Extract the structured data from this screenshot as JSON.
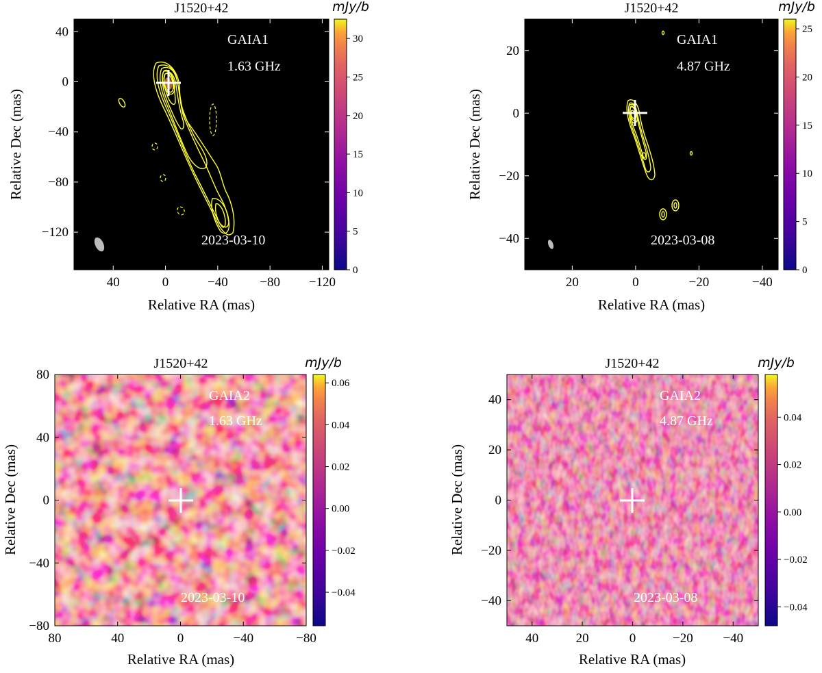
{
  "chart_data": [
    {
      "type": "heatmap",
      "title": "J1520+42",
      "xlabel": "Relative RA (mas)",
      "ylabel": "Relative Dec (mas)",
      "colorbar_label": "mJy/b",
      "xlim": [
        70,
        -125
      ],
      "ylim": [
        -150,
        50
      ],
      "xticks": [
        40,
        0,
        -40,
        -80,
        -120
      ],
      "yticks": [
        40,
        0,
        -40,
        -80,
        -120
      ],
      "vmin": 0,
      "vmax": 32.5,
      "colorbar_ticks": [
        0,
        5,
        10,
        15,
        20,
        25,
        30
      ],
      "source": "GAIA1",
      "frequency": "1.63 GHz",
      "date": "2023-03-10",
      "background": "black",
      "contours": true,
      "marker": {
        "ra": 0,
        "dec": 0
      }
    },
    {
      "type": "heatmap",
      "title": "J1520+42",
      "xlabel": "Relative RA (mas)",
      "ylabel": "Relative Dec (mas)",
      "colorbar_label": "mJy/b",
      "xlim": [
        35,
        -45
      ],
      "ylim": [
        -50,
        30
      ],
      "xticks": [
        20,
        0,
        -20,
        -40
      ],
      "yticks": [
        20,
        0,
        -20,
        -40
      ],
      "vmin": 0,
      "vmax": 26,
      "colorbar_ticks": [
        0,
        5,
        10,
        15,
        20,
        25
      ],
      "source": "GAIA1",
      "frequency": "4.87 GHz",
      "date": "2023-03-08",
      "background": "black",
      "contours": true,
      "marker": {
        "ra": 0,
        "dec": 0
      }
    },
    {
      "type": "heatmap",
      "title": "J1520+42",
      "xlabel": "Relative RA (mas)",
      "ylabel": "Relative Dec (mas)",
      "colorbar_label": "mJy/b",
      "xlim": [
        80,
        -80
      ],
      "ylim": [
        -80,
        80
      ],
      "xticks": [
        80,
        40,
        0,
        -40,
        -80
      ],
      "yticks": [
        80,
        40,
        0,
        -40,
        -80
      ],
      "vmin": -0.056,
      "vmax": 0.064,
      "colorbar_ticks": [
        -0.04,
        -0.02,
        0.0,
        0.02,
        0.04,
        0.06
      ],
      "colorbar_tick_labels": [
        "−0.04",
        "−0.02",
        "0.00",
        "0.02",
        "0.04",
        "0.06"
      ],
      "source": "GAIA2",
      "frequency": "1.63 GHz",
      "date": "2023-03-10",
      "background": "noise map (plasma colormap)",
      "contours": false,
      "marker": {
        "ra": 0,
        "dec": 0
      }
    },
    {
      "type": "heatmap",
      "title": "J1520+42",
      "xlabel": "Relative RA (mas)",
      "ylabel": "Relative Dec (mas)",
      "colorbar_label": "mJy/b",
      "xlim": [
        50,
        -50
      ],
      "ylim": [
        -50,
        50
      ],
      "xticks": [
        40,
        20,
        0,
        -20,
        -40
      ],
      "yticks": [
        40,
        20,
        0,
        -20,
        -40
      ],
      "vmin": -0.048,
      "vmax": 0.058,
      "colorbar_ticks": [
        -0.04,
        -0.02,
        0.0,
        0.02,
        0.04
      ],
      "colorbar_tick_labels": [
        "−0.04",
        "−0.02",
        "0.00",
        "0.02",
        "0.04"
      ],
      "source": "GAIA2",
      "frequency": "4.87 GHz",
      "date": "2023-03-08",
      "background": "noise map (plasma colormap)",
      "contours": false,
      "marker": {
        "ra": 0,
        "dec": 0
      }
    }
  ],
  "colors": {
    "contour": "#ffff33",
    "marker": "#ffffff",
    "annotation": "#ffffff",
    "beam": "#bbbbbb",
    "plasma_start": "#0d0887",
    "plasma_end": "#f0f921"
  }
}
